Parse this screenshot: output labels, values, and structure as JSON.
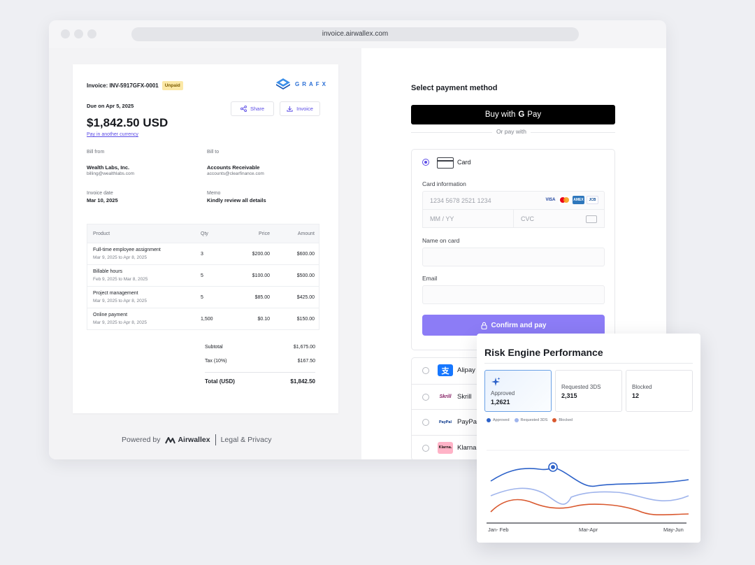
{
  "browser": {
    "url": "invoice.airwallex.com"
  },
  "invoice": {
    "id_label": "Invoice: INV-5917GFX-0001",
    "status": "Unpaid",
    "brand": "GRAFX",
    "due": "Due on Apr 5, 2025",
    "share_label": "Share",
    "invoice_label": "Invoice",
    "amount": "$1,842.50 USD",
    "pay_other_currency": "Pay in another currency",
    "bill_from_label": "Bill from",
    "bill_from_name": "Wealth Labs, Inc.",
    "bill_from_email": "billing@wealthlabs.com",
    "bill_to_label": "Bill to",
    "bill_to_name": "Accounts Receivable",
    "bill_to_email": "accounts@clearfinance.com",
    "invoice_date_label": "Invoice date",
    "invoice_date": "Mar 10, 2025",
    "memo_label": "Memo",
    "memo": "Kindly review all details",
    "table": {
      "headers": [
        "Product",
        "Qty",
        "Price",
        "Amount"
      ],
      "rows": [
        {
          "product": "Full-time employee assignment",
          "period": "Mar 9, 2025 to Apr 8, 2025",
          "qty": "3",
          "price": "$200.00",
          "amount": "$600.00"
        },
        {
          "product": "Billable hours",
          "period": "Feb 9, 2025 to Mar 8, 2025",
          "qty": "5",
          "price": "$100.00",
          "amount": "$500.00"
        },
        {
          "product": "Project management",
          "period": "Mar 9, 2025 to Apr 8, 2025",
          "qty": "5",
          "price": "$85.00",
          "amount": "$425.00"
        },
        {
          "product": "Online payment",
          "period": "Mar 9, 2025 to Apr 8, 2025",
          "qty": "1,500",
          "price": "$0.10",
          "amount": "$150.00"
        }
      ]
    },
    "subtotal_label": "Subtotal",
    "subtotal": "$1,675.00",
    "tax_label": "Tax (10%)",
    "tax": "$167.50",
    "total_label": "Total (USD)",
    "total": "$1,842.50"
  },
  "footer": {
    "powered_by": "Powered by",
    "company": "Airwallex",
    "legal": "Legal & Privacy"
  },
  "payment": {
    "title": "Select payment method",
    "gpay_prefix": "Buy with",
    "gpay_g": "G",
    "gpay_suffix": "Pay",
    "or_pay_with": "Or pay with",
    "card_label": "Card",
    "card_info_label": "Card information",
    "card_number_placeholder": "1234 5678 2521 1234",
    "expiry_placeholder": "MM / YY",
    "cvc_placeholder": "CVC",
    "name_label": "Name on card",
    "email_label": "Email",
    "confirm_label": "Confirm and pay",
    "card_brands": [
      "VISA",
      "AMEX",
      "JCB"
    ],
    "alternatives": [
      {
        "name": "Alipay",
        "icon": "alipay-icon",
        "color": "#1677ff"
      },
      {
        "name": "Skrill",
        "icon": "skrill-icon",
        "color": "#862165"
      },
      {
        "name": "PayPal",
        "icon": "paypal-icon",
        "color": "#003087"
      },
      {
        "name": "Klarna",
        "icon": "klarna-icon",
        "color": "#ffb3c7"
      }
    ]
  },
  "risk": {
    "title": "Risk Engine Performance",
    "kpis": [
      {
        "label": "Approved",
        "value": "1,2621"
      },
      {
        "label": "Requested 3DS",
        "value": "2,315"
      },
      {
        "label": "Blocked",
        "value": "12"
      }
    ],
    "chart_data": {
      "type": "line",
      "categories": [
        "Jan- Feb",
        "Mar-Apr",
        "May-Jun"
      ],
      "legend_position": "top-left",
      "series": [
        {
          "name": "Approved",
          "color": "#2d62c9"
        },
        {
          "name": "Requested 3DS",
          "color": "#9fb4ec"
        },
        {
          "name": "Blocked",
          "color": "#d9582e"
        }
      ]
    }
  },
  "colors": {
    "accent": "#5b4ce6",
    "confirm": "#8c7cf6"
  }
}
